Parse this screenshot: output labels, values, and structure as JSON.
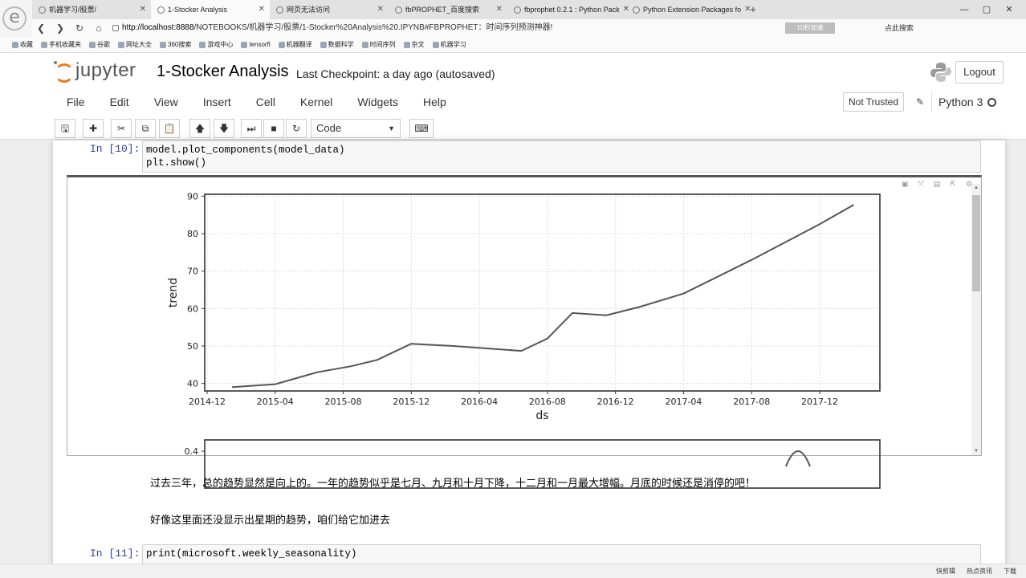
{
  "browser": {
    "tabs": [
      {
        "label": "机器学习/股票/",
        "active": false
      },
      {
        "label": "1-Stocker Analysis",
        "active": true
      },
      {
        "label": "网页无法访问",
        "active": false
      },
      {
        "label": "fbPROPHET_百度搜索",
        "active": false
      },
      {
        "label": "fbprophet 0.2.1 : Python Pack",
        "active": false
      },
      {
        "label": "Python Extension Packages fo",
        "active": false
      }
    ],
    "new_tab": "+",
    "url_host": "http://localhost:8888",
    "url_rest": "/NOTEBOOKS/机器学习/股票/1-Stocker%20Analysis%20.IPYNB#FBPROPHET：时间序列预测神器!",
    "addr_badge": "10秒加速",
    "search_label": "点此搜索",
    "bookmarks": [
      "收藏",
      "手机收藏夹",
      "谷歌",
      "网址大全",
      "360搜索",
      "游戏中心",
      "tensorfl",
      "机器翻译",
      "数据科学",
      "时间序列",
      "杂文",
      "机器学习"
    ]
  },
  "jupyter": {
    "logo_word": "jupyter",
    "notebook_title": "1-Stocker Analysis",
    "checkpoint": "Last Checkpoint: a day ago (autosaved)",
    "logout": "Logout",
    "menu": [
      "File",
      "Edit",
      "View",
      "Insert",
      "Cell",
      "Kernel",
      "Widgets",
      "Help"
    ],
    "trust_status": "Not Trusted",
    "kernel": "Python 3",
    "cell_type": "Code"
  },
  "cells": {
    "cell10_prompt": "In [10]:",
    "cell10_code": "model.plot_components(model_data)\nplt.show()",
    "cell11_prompt": "In [11]:",
    "cell11_code": "print(microsoft.weekly_seasonality)",
    "md_line1": "过去三年，总的趋势显然是向上的。一年的趋势似乎是七月、九月和十月下降，十二月和一月最大增幅。月底的时候还是消停的吧！",
    "md_line2": "好像这里面还没显示出星期的趋势，咱们给它加进去"
  },
  "chart_data": [
    {
      "type": "line",
      "xlabel": "ds",
      "ylabel": "trend",
      "x_ticks": [
        "2014-12",
        "2015-04",
        "2015-08",
        "2015-12",
        "2016-04",
        "2016-08",
        "2016-12",
        "2017-04",
        "2017-08",
        "2017-12"
      ],
      "y_ticks": [
        40,
        50,
        60,
        70,
        80,
        90
      ],
      "ylim": [
        38,
        90.5
      ],
      "grid": true,
      "series": [
        {
          "x": [
            "2015-01-15",
            "2015-04-01",
            "2015-06-15",
            "2015-08-15",
            "2015-10-01",
            "2015-12-01",
            "2016-02-15",
            "2016-06-15",
            "2016-08-01",
            "2016-09-15",
            "2016-11-15",
            "2017-01-15",
            "2017-04-01",
            "2017-08-01",
            "2017-12-01",
            "2018-02-01"
          ],
          "y": [
            39,
            39.8,
            43,
            44.6,
            46.3,
            50.6,
            50,
            48.7,
            52,
            58.8,
            58.2,
            60.5,
            64,
            73,
            82.5,
            87.7
          ]
        }
      ]
    },
    {
      "type": "line",
      "y_ticks": [
        0.4
      ]
    }
  ],
  "status_bar": [
    "快剪辑",
    "热点资讯",
    "下载"
  ]
}
